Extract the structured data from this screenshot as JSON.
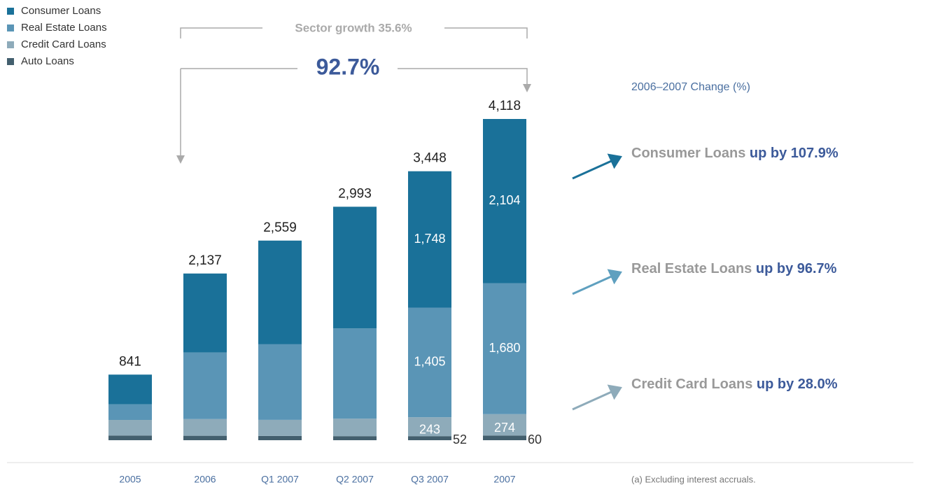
{
  "chart_data": {
    "type": "stacked_bar",
    "categories": [
      "2005",
      "2006",
      "Q1 2007",
      "Q2 2007",
      "Q3 2007",
      "2007"
    ],
    "series": [
      {
        "name": "Auto Loans",
        "color": "#435f6e",
        "values": [
          60,
          57,
          55,
          52,
          52,
          60
        ],
        "value_labels": [
          null,
          null,
          null,
          null,
          "52",
          "60"
        ]
      },
      {
        "name": "Credit Card Loans",
        "color": "#8eabba",
        "values": [
          200,
          214,
          206,
          224,
          243,
          274
        ],
        "value_labels": [
          null,
          null,
          null,
          null,
          "243",
          "274"
        ]
      },
      {
        "name": "Real Estate Loans",
        "color": "#5a95b6",
        "values": [
          200,
          854,
          969,
          1157,
          1405,
          1680
        ],
        "value_labels": [
          null,
          null,
          null,
          null,
          "1,405",
          "1,680"
        ]
      },
      {
        "name": "Consumer Loans",
        "color": "#1a7199",
        "values": [
          381,
          1012,
          1329,
          1560,
          1748,
          2104
        ],
        "value_labels": [
          null,
          null,
          null,
          null,
          "1,748",
          "2,104"
        ]
      }
    ],
    "totals": {
      "values": [
        841,
        2137,
        2559,
        2993,
        3448,
        4118
      ],
      "value_labels": [
        "841",
        "2,137",
        "2,559",
        "2,993",
        "3,448",
        "4,118"
      ]
    },
    "annotations": {
      "sector_growth": "Sector growth 35.6%",
      "growth": "92.7%",
      "change_title": "2006–2007 Change (%)",
      "footnote": "(a) Excluding interest accruals."
    },
    "callouts": [
      {
        "label": "Consumer Loans",
        "change": "up by 107.9%",
        "color": "#1a7199"
      },
      {
        "label": "Real Estate Loans",
        "change": "up by 96.7%",
        "color": "#5fa0bf"
      },
      {
        "label": "Credit Card Loans",
        "change": "up by 28.0%",
        "color": "#8eabba"
      }
    ]
  }
}
